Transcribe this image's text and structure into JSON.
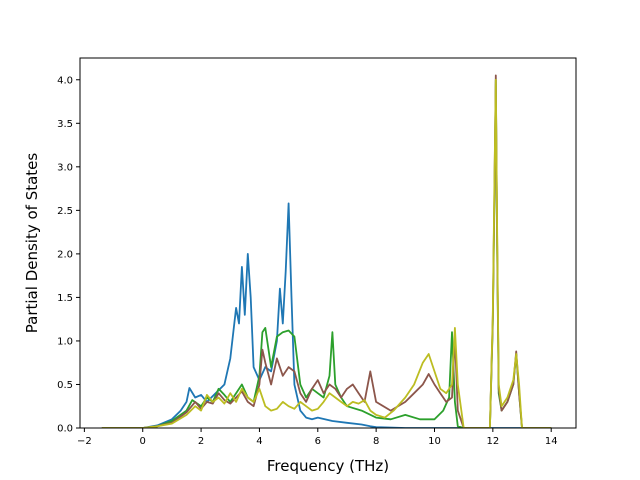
{
  "chart_data": {
    "type": "line",
    "xlabel": "Frequency (THz)",
    "ylabel": "Partial Density of States",
    "xlim": [
      -2.15,
      14.85
    ],
    "ylim": [
      0,
      4.25
    ],
    "xticks": [
      -2,
      0,
      2,
      4,
      6,
      8,
      10,
      12,
      14
    ],
    "yticks": [
      0.0,
      0.5,
      1.0,
      1.5,
      2.0,
      2.5,
      3.0,
      3.5,
      4.0
    ],
    "xtick_labels": [
      "−2",
      "0",
      "2",
      "4",
      "6",
      "8",
      "10",
      "12",
      "14"
    ],
    "ytick_labels": [
      "0.0",
      "0.5",
      "1.0",
      "1.5",
      "2.0",
      "2.5",
      "3.0",
      "3.5",
      "4.0"
    ],
    "grid": false,
    "series": [
      {
        "color": "#1f77b4",
        "x": [
          -1.4,
          0.0,
          0.5,
          1.0,
          1.3,
          1.5,
          1.6,
          1.8,
          2.0,
          2.2,
          2.5,
          2.8,
          3.0,
          3.2,
          3.3,
          3.4,
          3.5,
          3.6,
          3.7,
          3.8,
          4.0,
          4.2,
          4.4,
          4.6,
          4.7,
          4.8,
          4.9,
          5.0,
          5.1,
          5.2,
          5.4,
          5.6,
          5.8,
          6.0,
          6.5,
          7.0,
          7.5,
          7.8,
          8.0,
          9.0,
          14.0
        ],
        "y": [
          0.0,
          0.0,
          0.03,
          0.1,
          0.2,
          0.3,
          0.46,
          0.35,
          0.38,
          0.3,
          0.4,
          0.5,
          0.8,
          1.38,
          1.2,
          1.85,
          1.3,
          2.0,
          1.5,
          0.7,
          0.55,
          0.7,
          0.65,
          1.0,
          1.6,
          1.2,
          1.8,
          2.58,
          1.5,
          0.5,
          0.2,
          0.12,
          0.1,
          0.12,
          0.08,
          0.06,
          0.04,
          0.02,
          0.01,
          0.0,
          0.0
        ]
      },
      {
        "color": "#2ca02c",
        "x": [
          -1.4,
          0.0,
          0.5,
          1.0,
          1.5,
          1.7,
          2.0,
          2.2,
          2.4,
          2.6,
          2.8,
          3.0,
          3.2,
          3.4,
          3.6,
          3.8,
          4.0,
          4.1,
          4.2,
          4.4,
          4.6,
          4.8,
          5.0,
          5.2,
          5.4,
          5.6,
          5.8,
          6.0,
          6.2,
          6.4,
          6.5,
          6.6,
          6.8,
          7.0,
          7.5,
          8.0,
          8.5,
          9.0,
          9.5,
          10.0,
          10.3,
          10.5,
          10.6,
          10.7,
          10.8,
          11.0,
          11.9,
          12.0,
          12.05,
          12.1,
          12.15,
          12.2,
          12.3,
          12.5,
          12.7,
          12.8,
          12.9,
          13.0,
          14.0
        ],
        "y": [
          0.0,
          0.0,
          0.02,
          0.08,
          0.2,
          0.32,
          0.25,
          0.35,
          0.3,
          0.45,
          0.38,
          0.3,
          0.4,
          0.5,
          0.35,
          0.3,
          0.6,
          1.1,
          1.15,
          0.7,
          1.05,
          1.1,
          1.12,
          1.05,
          0.5,
          0.35,
          0.45,
          0.4,
          0.35,
          0.6,
          1.1,
          0.5,
          0.35,
          0.25,
          0.2,
          0.12,
          0.1,
          0.15,
          0.1,
          0.1,
          0.2,
          0.35,
          1.1,
          0.3,
          0.02,
          0.0,
          0.0,
          1.2,
          2.5,
          4.0,
          2.0,
          0.4,
          0.2,
          0.3,
          0.5,
          0.85,
          0.4,
          0.0,
          0.0
        ]
      },
      {
        "color": "#8c564b",
        "x": [
          -1.4,
          0.0,
          0.5,
          1.0,
          1.5,
          1.8,
          2.0,
          2.2,
          2.4,
          2.6,
          2.8,
          3.0,
          3.2,
          3.4,
          3.6,
          3.8,
          4.0,
          4.1,
          4.2,
          4.4,
          4.6,
          4.8,
          5.0,
          5.2,
          5.4,
          5.6,
          5.8,
          6.0,
          6.2,
          6.4,
          6.6,
          6.8,
          7.0,
          7.2,
          7.4,
          7.6,
          7.8,
          8.0,
          8.5,
          9.0,
          9.3,
          9.6,
          9.8,
          10.0,
          10.2,
          10.4,
          10.6,
          10.7,
          10.8,
          11.0,
          11.9,
          12.0,
          12.05,
          12.1,
          12.15,
          12.2,
          12.3,
          12.5,
          12.7,
          12.8,
          12.9,
          13.0,
          14.0
        ],
        "y": [
          0.0,
          0.0,
          0.02,
          0.06,
          0.18,
          0.3,
          0.22,
          0.3,
          0.28,
          0.4,
          0.32,
          0.28,
          0.35,
          0.42,
          0.3,
          0.25,
          0.5,
          0.9,
          0.75,
          0.5,
          0.8,
          0.6,
          0.7,
          0.65,
          0.4,
          0.3,
          0.45,
          0.55,
          0.4,
          0.5,
          0.45,
          0.35,
          0.45,
          0.5,
          0.4,
          0.3,
          0.65,
          0.3,
          0.2,
          0.3,
          0.4,
          0.5,
          0.62,
          0.5,
          0.4,
          0.3,
          0.35,
          1.05,
          0.2,
          0.0,
          0.0,
          1.25,
          2.6,
          4.05,
          2.1,
          0.45,
          0.2,
          0.3,
          0.5,
          0.88,
          0.4,
          0.0,
          0.0
        ]
      },
      {
        "color": "#bcbd22",
        "x": [
          -1.4,
          0.0,
          0.5,
          1.0,
          1.5,
          1.8,
          2.0,
          2.2,
          2.4,
          2.6,
          2.8,
          3.0,
          3.2,
          3.4,
          3.6,
          3.8,
          4.0,
          4.2,
          4.4,
          4.6,
          4.8,
          5.0,
          5.2,
          5.4,
          5.6,
          5.8,
          6.0,
          6.2,
          6.4,
          6.6,
          6.8,
          7.0,
          7.2,
          7.4,
          7.6,
          7.8,
          8.0,
          8.3,
          8.6,
          9.0,
          9.3,
          9.6,
          9.8,
          10.0,
          10.2,
          10.4,
          10.6,
          10.7,
          10.8,
          11.0,
          11.9,
          12.0,
          12.05,
          12.1,
          12.15,
          12.2,
          12.3,
          12.5,
          12.7,
          12.8,
          12.9,
          13.0,
          14.0
        ],
        "y": [
          0.0,
          0.0,
          0.02,
          0.05,
          0.15,
          0.25,
          0.2,
          0.38,
          0.3,
          0.35,
          0.28,
          0.4,
          0.3,
          0.45,
          0.35,
          0.3,
          0.45,
          0.25,
          0.2,
          0.22,
          0.3,
          0.25,
          0.22,
          0.3,
          0.25,
          0.2,
          0.22,
          0.3,
          0.4,
          0.35,
          0.3,
          0.25,
          0.3,
          0.28,
          0.32,
          0.2,
          0.15,
          0.12,
          0.2,
          0.35,
          0.5,
          0.75,
          0.85,
          0.65,
          0.45,
          0.4,
          0.5,
          1.15,
          0.5,
          0.0,
          0.0,
          1.3,
          2.7,
          4.0,
          2.2,
          0.5,
          0.25,
          0.35,
          0.55,
          0.85,
          0.5,
          0.0,
          0.0
        ]
      }
    ]
  }
}
